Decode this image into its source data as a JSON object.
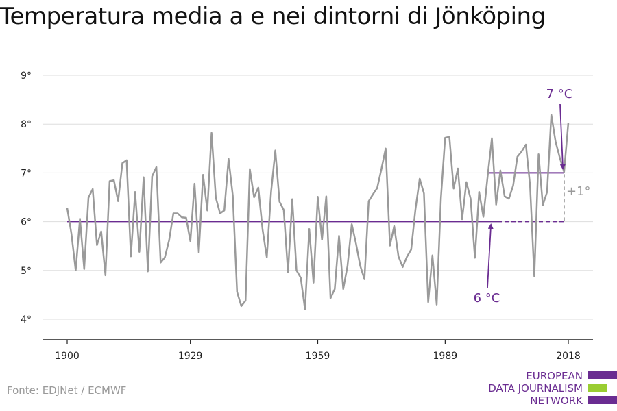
{
  "title": "Temperatura media a e nei dintorni di Jönköping",
  "source": "Fonte: EDJNet / ECMWF",
  "logo": {
    "lines": [
      "EUROPEAN",
      "DATA JOURNALISM",
      "NETWORK"
    ],
    "colors": {
      "purple": "#6a2c91",
      "green": "#9acd32"
    }
  },
  "colors": {
    "series": "#9a9a9a",
    "accent": "#6a2c91",
    "grid": "#dddddd",
    "axis": "#222222"
  },
  "chart_data": {
    "type": "line",
    "title": "Temperatura media a e nei dintorni di Jönköping",
    "xlim": [
      1900,
      2018
    ],
    "ylim": [
      4,
      9
    ],
    "x_ticks": [
      1900,
      1929,
      1959,
      1989,
      2018
    ],
    "y_ticks": [
      4,
      5,
      6,
      7,
      8,
      9
    ],
    "y_tick_labels": [
      "4°",
      "5°",
      "6°",
      "7°",
      "8°",
      "9°"
    ],
    "grid": true,
    "series": [
      {
        "x": [
          1900,
          1901,
          1902,
          1903,
          1904,
          1905,
          1906,
          1907,
          1908,
          1909,
          1910,
          1911,
          1912,
          1913,
          1914,
          1915,
          1916,
          1917,
          1918,
          1919,
          1920,
          1921,
          1922,
          1923,
          1924,
          1925,
          1926,
          1927,
          1928,
          1929,
          1930,
          1931,
          1932,
          1933,
          1934,
          1935,
          1936,
          1937,
          1938,
          1939,
          1940,
          1941,
          1942,
          1943,
          1944,
          1945,
          1946,
          1947,
          1948,
          1949,
          1950,
          1951,
          1952,
          1953,
          1954,
          1955,
          1956,
          1957,
          1958,
          1959,
          1960,
          1961,
          1962,
          1963,
          1964,
          1965,
          1966,
          1967,
          1968,
          1969,
          1970,
          1971,
          1972,
          1973,
          1974,
          1975,
          1976,
          1977,
          1978,
          1979,
          1980,
          1981,
          1982,
          1983,
          1984,
          1985,
          1986,
          1987,
          1988,
          1989,
          1990,
          1991,
          1992,
          1993,
          1994,
          1995,
          1996,
          1997,
          1998,
          1999,
          2000,
          2001,
          2002,
          2003,
          2004,
          2005,
          2006,
          2007,
          2008,
          2009,
          2010,
          2011,
          2012,
          2013,
          2014,
          2015,
          2016,
          2017,
          2018
        ],
        "values": [
          6.28,
          5.75,
          5.0,
          6.06,
          5.03,
          6.49,
          6.67,
          5.52,
          5.8,
          4.9,
          6.83,
          6.85,
          6.42,
          7.2,
          7.26,
          5.29,
          6.61,
          5.38,
          6.91,
          4.98,
          6.93,
          7.12,
          5.16,
          5.27,
          5.62,
          6.17,
          6.17,
          6.09,
          6.08,
          5.6,
          6.78,
          5.37,
          6.96,
          6.23,
          7.82,
          6.49,
          6.17,
          6.23,
          7.29,
          6.53,
          4.56,
          4.27,
          4.38,
          7.08,
          6.5,
          6.7,
          5.84,
          5.27,
          6.61,
          7.46,
          6.41,
          6.24,
          4.96,
          6.46,
          5.0,
          4.85,
          4.2,
          5.85,
          4.75,
          6.51,
          5.63,
          6.52,
          4.43,
          4.62,
          5.71,
          4.62,
          5.09,
          5.95,
          5.55,
          5.1,
          4.82,
          6.42,
          6.56,
          6.69,
          7.08,
          7.5,
          5.51,
          5.91,
          5.29,
          5.07,
          5.28,
          5.43,
          6.25,
          6.88,
          6.58,
          4.35,
          5.31,
          4.3,
          6.49,
          7.72,
          7.74,
          6.68,
          7.09,
          6.05,
          6.81,
          6.47,
          5.26,
          6.61,
          6.1,
          6.93,
          7.71,
          6.35,
          7.05,
          6.52,
          6.47,
          6.74,
          7.33,
          7.44,
          7.58,
          6.74,
          4.88,
          7.38,
          6.34,
          6.61,
          8.19,
          7.64,
          7.31,
          7.02,
          8.03
        ]
      }
    ],
    "reference_lines": [
      {
        "label": "6 °C",
        "value": 6.0,
        "x_start": 1900,
        "x_end": 2018
      },
      {
        "label": "7 °C",
        "value": 7.0,
        "x_start": 1999,
        "x_end": 2018
      }
    ],
    "annotations": [
      "7 °C",
      "6 °C",
      "+1°"
    ]
  }
}
